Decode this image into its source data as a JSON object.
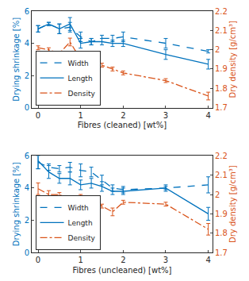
{
  "chart_data": [
    {
      "type": "line",
      "x_label": "Fibres (cleaned) [wt%]",
      "y_label": "Drying shrinkage [%]",
      "y2_label": "Dry density [g/cm³]",
      "x": [
        0,
        0.25,
        0.5,
        0.75,
        1,
        1.25,
        1.5,
        1.75,
        2,
        3,
        4
      ],
      "xlim": [
        -0.15,
        4.1
      ],
      "xticks": [
        0,
        1,
        2,
        3,
        4
      ],
      "ylim": [
        0,
        6
      ],
      "yticks": [
        0,
        2,
        4,
        6
      ],
      "y2lim": [
        1.7,
        2.2
      ],
      "y2ticks": [
        1.7,
        1.8,
        1.9,
        2,
        2.1,
        2.2
      ],
      "grid": false,
      "legend": "lower left",
      "series": [
        {
          "name": "Width",
          "color": "#0072bd",
          "line_style": "dashed",
          "values": [
            4.9,
            5.2,
            4.9,
            5.0,
            4.4,
            4.1,
            4.3,
            4.3,
            4.4,
            4.0,
            3.5
          ],
          "errors": [
            0.2,
            0.1,
            0.3,
            0.3,
            0.3,
            0.2,
            0.2,
            0.2,
            0.3,
            0.3,
            0.1
          ]
        },
        {
          "name": "Length",
          "color": "#0072bd",
          "line_style": "solid",
          "values": [
            4.9,
            5.2,
            4.9,
            5.2,
            4.0,
            4.1,
            4.1,
            4.0,
            4.0,
            3.3,
            2.7
          ],
          "errors": [
            0.2,
            0.1,
            0.3,
            0.4,
            0.3,
            0.2,
            0.2,
            0.2,
            0.2,
            0.3,
            0.3
          ]
        },
        {
          "name": "Density",
          "color": "#d95319",
          "line_style": "dashdot",
          "axis": "y2",
          "values": [
            2.01,
            2.0,
            1.98,
            2.04,
            1.95,
            1.93,
            1.92,
            1.9,
            1.88,
            1.84,
            1.76
          ],
          "errors": [
            0.01,
            0.01,
            0.01,
            0.02,
            0.02,
            0.01,
            0.01,
            0.01,
            0.01,
            0.01,
            0.02
          ]
        }
      ]
    },
    {
      "type": "line",
      "x_label": "Fibres (uncleaned) [wt%]",
      "y_label": "Drying shrinkage [%]",
      "y2_label": "Dry density [g/cm³]",
      "x": [
        0,
        0.25,
        0.5,
        0.75,
        1,
        1.25,
        1.5,
        1.75,
        2,
        3,
        4
      ],
      "xlim": [
        -0.15,
        4.1
      ],
      "xticks": [
        0,
        1,
        2,
        3,
        4
      ],
      "ylim": [
        0,
        6
      ],
      "yticks": [
        0,
        2,
        4,
        6
      ],
      "y2lim": [
        1.7,
        2.2
      ],
      "y2ticks": [
        1.7,
        1.8,
        1.9,
        2,
        2.1,
        2.2
      ],
      "grid": false,
      "legend": "lower left",
      "series": [
        {
          "name": "Width",
          "color": "#0072bd",
          "line_style": "dashed",
          "values": [
            5.6,
            5.3,
            5.2,
            5.3,
            5.1,
            5.0,
            4.5,
            4.0,
            3.9,
            4.0,
            4.2
          ],
          "errors": [
            0.4,
            0.2,
            0.2,
            0.3,
            0.4,
            0.3,
            0.3,
            0.2,
            0.2,
            0.1,
            0.5
          ]
        },
        {
          "name": "Length",
          "color": "#0072bd",
          "line_style": "solid",
          "values": [
            5.7,
            5.0,
            4.6,
            4.6,
            4.2,
            4.3,
            4.1,
            3.8,
            3.8,
            4.0,
            2.4
          ],
          "errors": [
            0.5,
            0.4,
            0.3,
            0.4,
            0.3,
            0.3,
            0.3,
            0.2,
            0.2,
            0.2,
            0.4
          ]
        },
        {
          "name": "Density",
          "color": "#d95319",
          "line_style": "dashdot",
          "axis": "y2",
          "values": [
            2.03,
            2.0,
            2.0,
            1.97,
            1.98,
            1.96,
            1.94,
            1.91,
            1.96,
            1.95,
            1.82
          ],
          "errors": [
            0.03,
            0.02,
            0.01,
            0.02,
            0.02,
            0.01,
            0.01,
            0.02,
            0.01,
            0.01,
            0.03
          ]
        }
      ]
    }
  ]
}
